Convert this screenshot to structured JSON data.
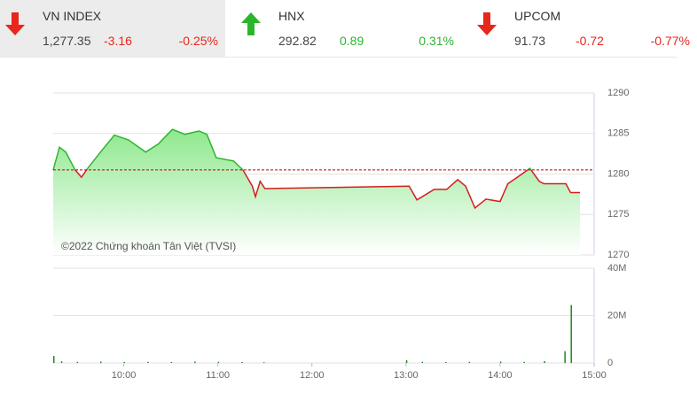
{
  "tickers": [
    {
      "name": "VN INDEX",
      "value": "1,277.35",
      "change": "-3.16",
      "percent": "-0.25%"
    },
    {
      "name": "HNX",
      "value": "292.82",
      "change": "0.89",
      "percent": "0.31%"
    },
    {
      "name": "UPCOM",
      "value": "91.73",
      "change": "-0.72",
      "percent": "-0.77%"
    }
  ],
  "chart_data": [
    {
      "type": "line",
      "annotation": "©2022 Chứng khoán Tân Việt (TVSI)",
      "x": [
        "09:15",
        "09:19",
        "09:23",
        "09:29",
        "09:33",
        "09:37",
        "09:46",
        "09:54",
        "10:03",
        "10:14",
        "10:22",
        "10:31",
        "10:39",
        "10:48",
        "10:53",
        "10:59",
        "11:10",
        "11:16",
        "11:22",
        "11:24",
        "11:27",
        "11:30",
        "13:02",
        "13:07",
        "13:18",
        "13:26",
        "13:33",
        "13:38",
        "13:44",
        "13:51",
        "14:00",
        "14:05",
        "14:14",
        "14:19",
        "14:25",
        "14:28",
        "14:42",
        "14:45",
        "14:51"
      ],
      "series": [
        {
          "name": "VN INDEX",
          "color": "#2fb52f",
          "below_color": "#d41e1e",
          "values": [
            1280.5,
            1283.3,
            1282.7,
            1280.5,
            1279.6,
            1280.7,
            1282.9,
            1284.8,
            1284.2,
            1282.7,
            1283.7,
            1285.5,
            1284.9,
            1285.3,
            1284.9,
            1282.0,
            1281.6,
            1280.5,
            1278.5,
            1277.2,
            1279.1,
            1278.2,
            1278.5,
            1276.8,
            1278.1,
            1278.1,
            1279.3,
            1278.5,
            1275.8,
            1276.9,
            1276.6,
            1278.8,
            1280.0,
            1280.7,
            1279.1,
            1278.8,
            1278.8,
            1277.7,
            1277.7
          ]
        }
      ],
      "reference": 1280.51,
      "reference_color": "#c00000",
      "xlim": [
        "09:15",
        "15:00"
      ],
      "ylim": [
        1270,
        1290
      ],
      "yticks": [
        1270,
        1275,
        1280,
        1285,
        1290
      ],
      "grid": true
    },
    {
      "type": "bar",
      "x": [
        "09:15",
        "09:20",
        "09:30",
        "09:45",
        "10:00",
        "10:15",
        "10:30",
        "10:45",
        "11:00",
        "11:15",
        "11:29",
        "13:00",
        "13:10",
        "13:25",
        "13:40",
        "14:00",
        "14:15",
        "14:28",
        "14:41",
        "14:45"
      ],
      "values": [
        3000000,
        700000,
        500000,
        600000,
        400000,
        500000,
        400000,
        600000,
        500000,
        400000,
        300000,
        1200000,
        500000,
        400000,
        500000,
        600000,
        500000,
        800000,
        5000000,
        24500000
      ],
      "color": "#1f8a1f",
      "xlim": [
        "09:15",
        "15:00"
      ],
      "xticks": [
        "10:00",
        "11:00",
        "12:00",
        "13:00",
        "14:00",
        "15:00"
      ],
      "ylim": [
        0,
        40000000
      ],
      "yticks": [
        0,
        {
          "value": 20000000,
          "label": "20M"
        },
        {
          "value": 40000000,
          "label": "40M"
        }
      ],
      "grid": true
    }
  ]
}
